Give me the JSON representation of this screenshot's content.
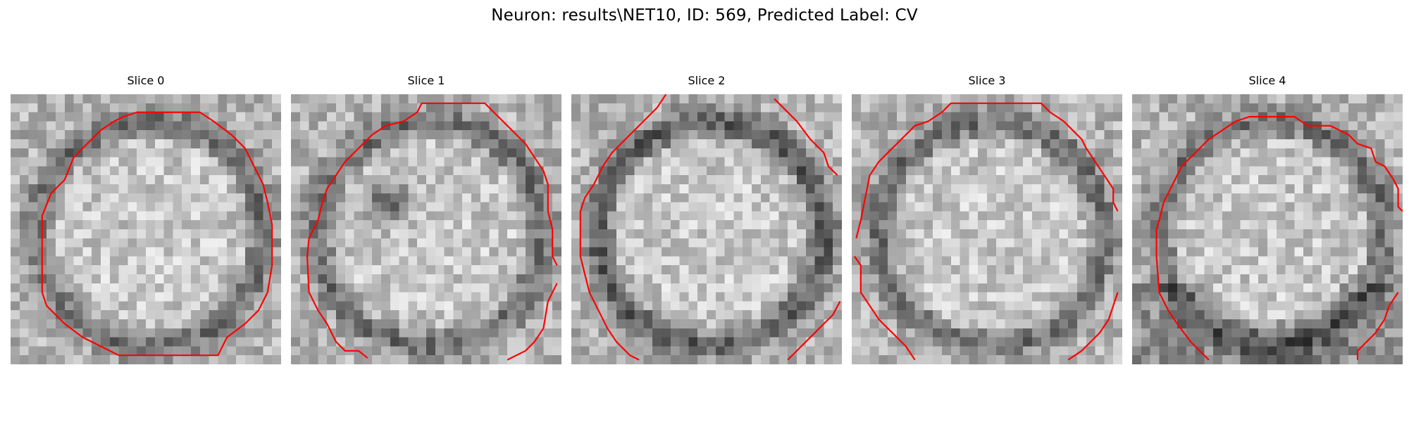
{
  "figure": {
    "title": "Neuron: results\\NET10, ID: 569, Predicted Label: CV"
  },
  "panels": [
    {
      "title": "Slice 0",
      "outline": "closed"
    },
    {
      "title": "Slice 1",
      "outline": "open"
    },
    {
      "title": "Slice 2",
      "outline": "open"
    },
    {
      "title": "Slice 3",
      "outline": "open"
    },
    {
      "title": "Slice 4",
      "outline": "open"
    }
  ],
  "style": {
    "contour_color": "#ff0000",
    "colormap": "grayscale"
  }
}
